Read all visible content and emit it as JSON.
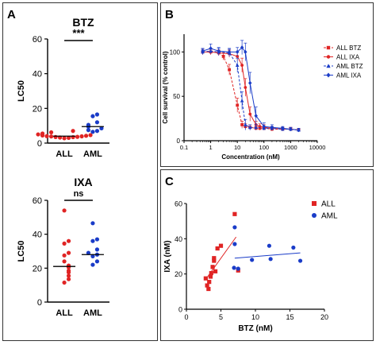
{
  "chart_data": [
    {
      "panel": "A",
      "type": "scatter",
      "title": "BTZ",
      "ylabel": "LC50",
      "ylim": [
        0,
        60
      ],
      "yticks": [
        0,
        20,
        40,
        60
      ],
      "categories": [
        "ALL",
        "AML"
      ],
      "significance": "***",
      "series": [
        {
          "name": "ALL",
          "color": "#e02424",
          "marker": "circle",
          "values": [
            2.8,
            3.0,
            3.2,
            3.4,
            3.5,
            3.6,
            3.8,
            3.9,
            4.0,
            4.2,
            4.4,
            4.6,
            5.0,
            5.5,
            6.2,
            7.0
          ],
          "median": 4.0
        },
        {
          "name": "AML",
          "color": "#1a3cc8",
          "marker": "circle",
          "values": [
            6.5,
            7.0,
            7.5,
            8.5,
            9.5,
            10.5,
            12.0,
            15.5,
            16.5
          ],
          "median": 9.5
        }
      ]
    },
    {
      "panel": "A",
      "type": "scatter",
      "title": "IXA",
      "ylabel": "LC50",
      "ylim": [
        0,
        60
      ],
      "yticks": [
        0,
        20,
        40,
        60
      ],
      "categories": [
        "ALL",
        "AML"
      ],
      "significance": "ns",
      "series": [
        {
          "name": "ALL",
          "color": "#e02424",
          "marker": "circle",
          "values": [
            11.5,
            13.5,
            15.5,
            17.5,
            18.5,
            20.5,
            21.5,
            24.0,
            27.5,
            29.0,
            34.5,
            36.0,
            54.0
          ],
          "median": 21.0
        },
        {
          "name": "AML",
          "color": "#1a3cc8",
          "marker": "circle",
          "values": [
            22.0,
            24.0,
            27.0,
            28.0,
            29.0,
            31.0,
            36.0,
            37.0,
            46.5
          ],
          "median": 28.0
        }
      ]
    },
    {
      "panel": "B",
      "type": "line",
      "xlabel": "Concentration (nM)",
      "ylabel": "Cell survival (% control)",
      "xscale": "log",
      "xlim": [
        0.1,
        10000
      ],
      "xticks": [
        0.1,
        1,
        10,
        100,
        1000,
        10000
      ],
      "xtick_labels": [
        "0.1",
        "1",
        "10",
        "100",
        "1000",
        "10000"
      ],
      "ylim": [
        0,
        120
      ],
      "yticks": [
        0,
        50,
        100
      ],
      "legend_position": "right",
      "series": [
        {
          "name": "ALL BTZ",
          "color": "#e02424",
          "marker": "square",
          "dash": "3,2",
          "x": [
            0.5,
            1,
            2,
            3,
            5,
            10,
            15,
            20,
            30,
            50,
            70,
            100,
            200,
            500,
            1000,
            2000
          ],
          "y": [
            100,
            100,
            99,
            95,
            80,
            40,
            18,
            16,
            15,
            14,
            14,
            14,
            13,
            13,
            13,
            12
          ],
          "err": [
            3,
            3,
            3,
            4,
            6,
            8,
            4,
            3,
            3,
            2,
            2,
            2,
            2,
            2,
            2,
            2
          ]
        },
        {
          "name": "ALL IXA",
          "color": "#e02424",
          "marker": "circle",
          "dash": "",
          "x": [
            0.5,
            1,
            2,
            5,
            10,
            15,
            20,
            30,
            50,
            70,
            100,
            200,
            500,
            1000,
            2000
          ],
          "y": [
            100,
            100,
            99,
            98,
            95,
            85,
            60,
            30,
            18,
            16,
            15,
            14,
            13,
            13,
            12
          ],
          "err": [
            3,
            3,
            3,
            4,
            5,
            8,
            10,
            8,
            4,
            3,
            3,
            2,
            2,
            2,
            2
          ]
        },
        {
          "name": "AML BTZ",
          "color": "#1a3cc8",
          "marker": "triangle",
          "dash": "3,2",
          "x": [
            0.5,
            1,
            2,
            5,
            10,
            15,
            20,
            30,
            50,
            100,
            200,
            500,
            1000,
            2000
          ],
          "y": [
            100,
            101,
            100,
            99,
            85,
            45,
            18,
            15,
            15,
            14,
            14,
            13,
            13,
            12
          ],
          "err": [
            3,
            3,
            4,
            4,
            8,
            10,
            6,
            3,
            3,
            2,
            2,
            2,
            2,
            2
          ]
        },
        {
          "name": "AML IXA",
          "color": "#1a3cc8",
          "marker": "diamond",
          "dash": "",
          "x": [
            0.5,
            1,
            2,
            5,
            10,
            15,
            20,
            30,
            50,
            100,
            200,
            500,
            1000,
            2000
          ],
          "y": [
            101,
            104,
            101,
            100,
            100,
            105,
            100,
            65,
            28,
            16,
            15,
            14,
            13,
            12
          ],
          "err": [
            3,
            5,
            4,
            4,
            5,
            8,
            10,
            12,
            10,
            4,
            3,
            2,
            2,
            2
          ]
        }
      ]
    },
    {
      "panel": "C",
      "type": "scatter",
      "xlabel": "BTZ (nM)",
      "ylabel": "IXA (nM)",
      "xlim": [
        0,
        20
      ],
      "xticks": [
        0,
        5,
        10,
        15,
        20
      ],
      "ylim": [
        0,
        60
      ],
      "yticks": [
        0,
        20,
        40,
        60
      ],
      "legend_position": "top-right",
      "series": [
        {
          "name": "ALL",
          "color": "#e02424",
          "marker": "square",
          "x": [
            2.8,
            3.0,
            3.2,
            3.3,
            3.5,
            3.6,
            3.8,
            4.0,
            4.0,
            4.2,
            4.5,
            5.0,
            7.0,
            7.5
          ],
          "y": [
            17.5,
            13.5,
            11.5,
            15.5,
            18.5,
            20.5,
            24.0,
            27.5,
            29.0,
            21.5,
            34.5,
            36.0,
            54.0,
            22.0
          ],
          "trend": {
            "x": [
              3.0,
              7.2
            ],
            "y": [
              18.0,
              41.0
            ]
          }
        },
        {
          "name": "AML",
          "color": "#1a3cc8",
          "marker": "circle",
          "x": [
            6.9,
            7.0,
            7.0,
            7.5,
            9.5,
            12.0,
            12.2,
            15.5,
            16.5
          ],
          "y": [
            23.5,
            37.0,
            46.5,
            23.0,
            28.0,
            36.0,
            28.5,
            35.0,
            27.5
          ],
          "trend": {
            "x": [
              7.0,
              16.5
            ],
            "y": [
              29.0,
              32.0
            ]
          }
        }
      ]
    }
  ],
  "panels": {
    "a": "A",
    "b": "B",
    "c": "C"
  }
}
